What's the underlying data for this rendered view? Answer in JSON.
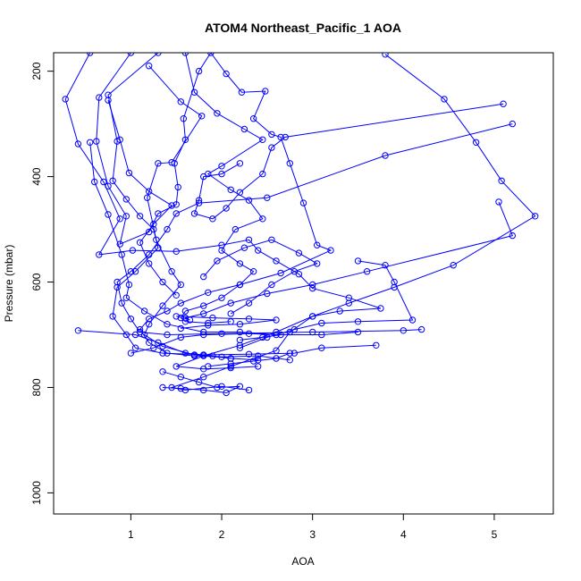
{
  "chart_data": {
    "type": "line",
    "title": "ATOM4 Northeast_Pacific_1 AOA",
    "xlabel": "AOA",
    "ylabel": "Pressure (mbar)",
    "xlim": [
      0.15,
      5.65
    ],
    "ylim": [
      1040,
      165
    ],
    "y_reversed": true,
    "x_ticks": [
      1,
      2,
      3,
      4,
      5
    ],
    "x_tick_labels": [
      "1",
      "2",
      "3",
      "4",
      "5"
    ],
    "y_ticks": [
      200,
      400,
      600,
      800,
      1000
    ],
    "y_tick_labels": [
      "200",
      "400",
      "600",
      "800",
      "1000"
    ],
    "grid": false,
    "marker": "open-circle",
    "colors": {
      "series": "#0000ff",
      "axis": "#000000",
      "background": "#ffffff"
    },
    "series": [
      {
        "points": [
          [
            0.55,
            165
          ],
          [
            0.28,
            253
          ],
          [
            0.42,
            338
          ],
          [
            0.7,
            410
          ],
          [
            0.88,
            480
          ],
          [
            0.65,
            548
          ],
          [
            1.02,
            540
          ],
          [
            1.5,
            542
          ],
          [
            2.0,
            530
          ],
          [
            2.3,
            520
          ],
          [
            2.4,
            540
          ],
          [
            2.6,
            560
          ],
          [
            2.85,
            585
          ],
          [
            3.0,
            612
          ],
          [
            3.4,
            630
          ],
          [
            3.75,
            650
          ],
          [
            3.3,
            655
          ],
          [
            3.0,
            665
          ],
          [
            2.75,
            695
          ],
          [
            2.6,
            730
          ],
          [
            2.1,
            760
          ],
          [
            1.8,
            780
          ],
          [
            1.45,
            800
          ],
          [
            1.6,
            805
          ],
          [
            2.0,
            798
          ],
          [
            2.3,
            805
          ]
        ]
      },
      {
        "points": [
          [
            1.0,
            165
          ],
          [
            0.65,
            250
          ],
          [
            0.62,
            333
          ],
          [
            0.75,
            418
          ],
          [
            0.95,
            475
          ],
          [
            0.88,
            528
          ],
          [
            1.2,
            505
          ],
          [
            1.3,
            470
          ],
          [
            1.5,
            453
          ],
          [
            1.52,
            420
          ],
          [
            1.48,
            375
          ],
          [
            1.6,
            330
          ],
          [
            1.58,
            290
          ],
          [
            1.75,
            200
          ],
          [
            1.88,
            165
          ],
          [
            2.05,
            205
          ],
          [
            2.22,
            240
          ],
          [
            2.48,
            238
          ],
          [
            2.35,
            290
          ],
          [
            2.55,
            320
          ],
          [
            2.65,
            325
          ],
          [
            2.75,
            375
          ],
          [
            2.9,
            450
          ],
          [
            3.05,
            530
          ],
          [
            3.2,
            540
          ],
          [
            2.65,
            583
          ],
          [
            2.2,
            605
          ],
          [
            1.85,
            620
          ],
          [
            1.55,
            640
          ],
          [
            1.4,
            655
          ],
          [
            1.2,
            670
          ],
          [
            1.1,
            690
          ],
          [
            1.2,
            715
          ],
          [
            1.4,
            735
          ],
          [
            1.7,
            740
          ],
          [
            2.0,
            742
          ],
          [
            2.4,
            740
          ],
          [
            2.75,
            748
          ]
        ]
      },
      {
        "points": [
          [
            1.3,
            165
          ],
          [
            0.75,
            245
          ],
          [
            0.85,
            333
          ],
          [
            0.8,
            408
          ],
          [
            0.95,
            443
          ],
          [
            1.1,
            475
          ],
          [
            1.25,
            500
          ],
          [
            1.3,
            535
          ],
          [
            1.05,
            580
          ],
          [
            0.85,
            610
          ],
          [
            0.8,
            665
          ],
          [
            0.95,
            700
          ],
          [
            1.05,
            725
          ],
          [
            1.35,
            735
          ],
          [
            1.8,
            738
          ],
          [
            2.3,
            737
          ],
          [
            2.8,
            735
          ],
          [
            3.1,
            725
          ],
          [
            3.7,
            720
          ]
        ]
      },
      {
        "points": [
          [
            1.6,
            165
          ],
          [
            1.7,
            240
          ],
          [
            1.95,
            280
          ],
          [
            2.25,
            310
          ],
          [
            2.45,
            330
          ],
          [
            2.0,
            380
          ],
          [
            1.85,
            395
          ],
          [
            2.1,
            425
          ],
          [
            2.3,
            445
          ],
          [
            2.45,
            480
          ],
          [
            2.15,
            500
          ],
          [
            2.0,
            540
          ],
          [
            2.2,
            565
          ],
          [
            2.35,
            580
          ],
          [
            2.2,
            605
          ],
          [
            2.0,
            630
          ],
          [
            1.8,
            645
          ],
          [
            1.6,
            655
          ],
          [
            1.55,
            668
          ],
          [
            1.6,
            675
          ],
          [
            1.85,
            678
          ],
          [
            2.1,
            675
          ]
        ]
      },
      {
        "points": [
          [
            3.8,
            168
          ],
          [
            4.45,
            253
          ],
          [
            4.8,
            335
          ],
          [
            5.08,
            408
          ],
          [
            5.45,
            475
          ],
          [
            4.55,
            568
          ],
          [
            3.9,
            610
          ],
          [
            3.4,
            640
          ],
          [
            3.0,
            665
          ],
          [
            2.6,
            695
          ],
          [
            2.2,
            720
          ],
          [
            1.8,
            740
          ],
          [
            1.5,
            760
          ],
          [
            1.8,
            765
          ],
          [
            2.1,
            763
          ],
          [
            2.4,
            760
          ]
        ]
      },
      {
        "points": [
          [
            0.42,
            692
          ],
          [
            1.05,
            700
          ],
          [
            1.3,
            715
          ],
          [
            1.6,
            735
          ],
          [
            1.9,
            740
          ],
          [
            2.1,
            745
          ],
          [
            2.4,
            748
          ]
        ]
      },
      {
        "points": [
          [
            5.05,
            448
          ],
          [
            5.2,
            512
          ],
          [
            3.6,
            580
          ],
          [
            3.0,
            605
          ],
          [
            2.5,
            622
          ],
          [
            2.1,
            640
          ],
          [
            1.8,
            660
          ],
          [
            1.6,
            668
          ],
          [
            1.65,
            672
          ]
        ]
      },
      {
        "points": [
          [
            5.1,
            262
          ],
          [
            2.7,
            325
          ],
          [
            2.55,
            345
          ],
          [
            2.45,
            395
          ],
          [
            2.2,
            430
          ],
          [
            2.05,
            460
          ],
          [
            1.9,
            480
          ],
          [
            1.7,
            470
          ],
          [
            1.75,
            445
          ],
          [
            1.8,
            400
          ],
          [
            2.0,
            395
          ],
          [
            2.2,
            375
          ]
        ]
      },
      {
        "points": [
          [
            5.2,
            300
          ],
          [
            3.8,
            360
          ],
          [
            2.5,
            440
          ],
          [
            1.75,
            450
          ],
          [
            1.5,
            470
          ],
          [
            1.4,
            500
          ],
          [
            1.2,
            548
          ],
          [
            1.0,
            580
          ],
          [
            0.85,
            600
          ],
          [
            0.9,
            640
          ],
          [
            1.0,
            670
          ],
          [
            1.1,
            695
          ],
          [
            1.4,
            700
          ],
          [
            2.0,
            698
          ],
          [
            3.0,
            695
          ],
          [
            4.0,
            692
          ],
          [
            4.2,
            690
          ]
        ]
      },
      {
        "points": [
          [
            1.2,
            190
          ],
          [
            1.55,
            258
          ],
          [
            1.78,
            285
          ],
          [
            1.45,
            373
          ],
          [
            1.3,
            375
          ],
          [
            1.18,
            440
          ],
          [
            1.28,
            520
          ],
          [
            1.45,
            580
          ],
          [
            1.55,
            605
          ],
          [
            1.35,
            645
          ],
          [
            1.2,
            680
          ],
          [
            1.15,
            700
          ],
          [
            1.35,
            722
          ],
          [
            1.7,
            738
          ],
          [
            2.1,
            745
          ]
        ]
      },
      {
        "points": [
          [
            3.5,
            560
          ],
          [
            3.8,
            568
          ],
          [
            3.9,
            600
          ],
          [
            4.1,
            672
          ],
          [
            3.5,
            675
          ],
          [
            3.1,
            678
          ],
          [
            2.8,
            690
          ],
          [
            2.5,
            705
          ],
          [
            2.2,
            725
          ]
        ]
      },
      {
        "points": [
          [
            0.55,
            335
          ],
          [
            0.6,
            410
          ],
          [
            0.75,
            472
          ],
          [
            0.9,
            548
          ],
          [
            0.98,
            605
          ],
          [
            0.95,
            630
          ],
          [
            1.15,
            655
          ],
          [
            1.4,
            680
          ],
          [
            1.8,
            695
          ],
          [
            2.2,
            695
          ],
          [
            2.6,
            700
          ],
          [
            3.1,
            700
          ],
          [
            3.5,
            695
          ]
        ]
      },
      {
        "points": [
          [
            1.8,
            590
          ],
          [
            1.95,
            560
          ],
          [
            2.25,
            535
          ],
          [
            2.55,
            520
          ],
          [
            2.85,
            545
          ],
          [
            3.05,
            565
          ],
          [
            2.8,
            580
          ],
          [
            2.55,
            605
          ],
          [
            2.3,
            640
          ],
          [
            2.1,
            660
          ]
        ]
      },
      {
        "points": [
          [
            1.0,
            735
          ],
          [
            1.25,
            725
          ],
          [
            1.55,
            705
          ],
          [
            1.8,
            700
          ],
          [
            2.3,
            698
          ],
          [
            2.65,
            700
          ],
          [
            2.45,
            705
          ],
          [
            2.2,
            710
          ]
        ]
      },
      {
        "points": [
          [
            1.35,
            770
          ],
          [
            1.55,
            780
          ],
          [
            1.75,
            790
          ],
          [
            1.95,
            800
          ],
          [
            2.2,
            798
          ],
          [
            2.05,
            810
          ],
          [
            1.8,
            805
          ],
          [
            1.55,
            802
          ],
          [
            1.35,
            800
          ]
        ]
      },
      {
        "points": [
          [
            1.5,
            665
          ],
          [
            1.9,
            668
          ],
          [
            2.3,
            670
          ],
          [
            2.6,
            672
          ],
          [
            2.2,
            680
          ],
          [
            1.85,
            682
          ],
          [
            1.55,
            688
          ]
        ]
      },
      {
        "points": [
          [
            0.75,
            255
          ],
          [
            0.88,
            330
          ],
          [
            0.98,
            393
          ],
          [
            1.2,
            428
          ],
          [
            1.45,
            455
          ],
          [
            1.25,
            490
          ],
          [
            1.1,
            525
          ],
          [
            1.2,
            565
          ],
          [
            1.35,
            600
          ],
          [
            1.5,
            625
          ]
        ]
      },
      {
        "points": [
          [
            1.85,
            760
          ],
          [
            2.1,
            755
          ],
          [
            2.35,
            750
          ],
          [
            2.6,
            745
          ],
          [
            2.75,
            735
          ]
        ]
      }
    ]
  }
}
